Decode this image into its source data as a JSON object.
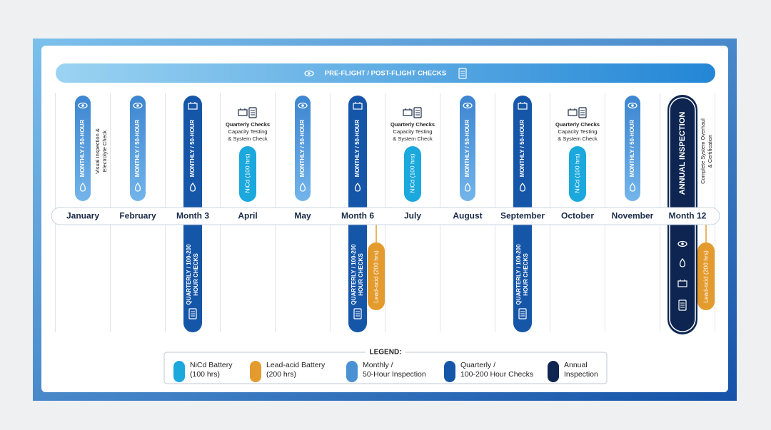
{
  "header": {
    "title": "PRE-FLIGHT / POST-FLIGHT CHECKS"
  },
  "columns": [
    {
      "month": "January",
      "top": {
        "kind": "monthly",
        "text": "MONTHLY / 50-HOUR"
      },
      "note": [
        "Visual Inspection &",
        "Electrolyte Check"
      ]
    },
    {
      "month": "February",
      "top": {
        "kind": "monthly",
        "text": "MONTHLY / 50-HOUR"
      }
    },
    {
      "month": "Month 3",
      "top": {
        "kind": "quarterly",
        "text": "MONTHLY / 50-HOUR"
      },
      "bottom": [
        "QUARTERLY / 100-200",
        "HOUR CHECKS"
      ]
    },
    {
      "month": "April",
      "top": {
        "kind": "nicd",
        "text": "NiCd (100 hrs)"
      },
      "caption": [
        "Quarterly Checks",
        "Capacity Testing",
        "& System Check"
      ]
    },
    {
      "month": "May",
      "top": {
        "kind": "monthly",
        "text": "MONTHLY / 50-HOUR"
      }
    },
    {
      "month": "Month 6",
      "top": {
        "kind": "quarterly",
        "text": "MONTHLY / 50-HOUR"
      },
      "bottom": [
        "QUARTERLY / 100-200",
        "HOUR CHECKS"
      ],
      "side": "Lead-acid (200 hrs)"
    },
    {
      "month": "July",
      "top": {
        "kind": "nicd",
        "text": "NiCd (100 hrs)"
      },
      "caption": [
        "Quarterly Checks",
        "Capacity Testing",
        "& System Check"
      ]
    },
    {
      "month": "August",
      "top": {
        "kind": "monthly",
        "text": "MONTHLY / 50-HOUR"
      }
    },
    {
      "month": "September",
      "top": {
        "kind": "quarterly",
        "text": "MONTHLY / 50-HOUR"
      },
      "bottom": [
        "QUARTERLY / 100-200",
        "HOUR CHECKS"
      ]
    },
    {
      "month": "October",
      "top": {
        "kind": "nicd",
        "text": "NiCd (100 hrs)"
      },
      "caption": [
        "Quarterly Checks",
        "Capacity Testing",
        "& System Check"
      ]
    },
    {
      "month": "November",
      "top": {
        "kind": "monthly",
        "text": "MONTHLY / 50-HOUR"
      }
    },
    {
      "month": "Month 12",
      "top": {
        "kind": "annual",
        "text": "ANNUAL INSPECTION"
      },
      "note": [
        "Complete System Overhaul",
        "& Certification"
      ],
      "side": "Lead-acid (200 hrs)"
    }
  ],
  "legend": {
    "title": "LEGEND:",
    "items": [
      {
        "label": [
          "NiCd Battery",
          "(100 hrs)"
        ],
        "color": "#1ba8dd"
      },
      {
        "label": [
          "Lead-acid Battery",
          "(200 hrs)"
        ],
        "color": "#e49b2e"
      },
      {
        "label": [
          "Monthly /",
          "50-Hour Inspection"
        ],
        "color": "#4a91d3"
      },
      {
        "label": [
          "Quarterly /",
          "100-200 Hour Checks"
        ],
        "color": "#1656a8"
      },
      {
        "label": [
          "Annual",
          "Inspection"
        ],
        "color": "#0d2550"
      }
    ]
  }
}
